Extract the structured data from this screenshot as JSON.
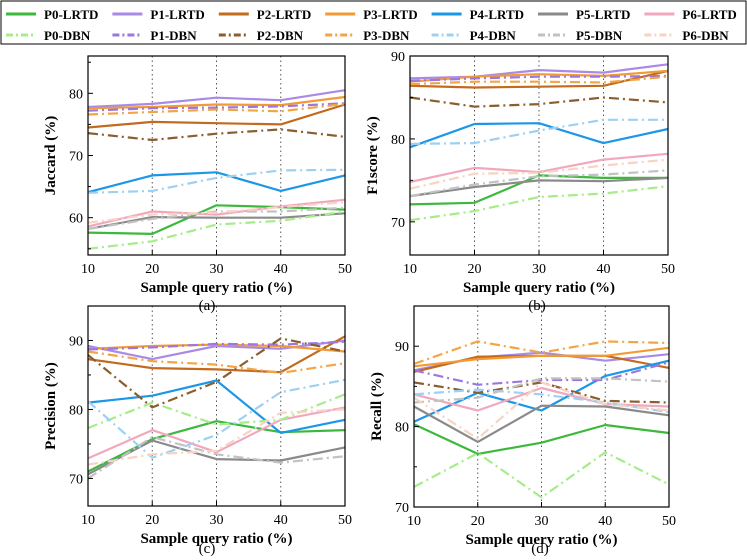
{
  "legend": {
    "entries": [
      {
        "label": "P0-LRTD",
        "color": "#3cb93c",
        "style": "solid"
      },
      {
        "label": "P1-LRTD",
        "color": "#a98ae6",
        "style": "solid"
      },
      {
        "label": "P2-LRTD",
        "color": "#c26a1e",
        "style": "solid"
      },
      {
        "label": "P3-LRTD",
        "color": "#f29a33",
        "style": "solid"
      },
      {
        "label": "P4-LRTD",
        "color": "#1c97e8",
        "style": "solid"
      },
      {
        "label": "P5-LRTD",
        "color": "#8a8a8a",
        "style": "solid"
      },
      {
        "label": "P6-LRTD",
        "color": "#f2a8bc",
        "style": "solid"
      },
      {
        "label": "P0-DBN",
        "color": "#a6ec8a",
        "style": "dashdot"
      },
      {
        "label": "P1-DBN",
        "color": "#9a78e0",
        "style": "dashdot"
      },
      {
        "label": "P2-DBN",
        "color": "#8a5e2e",
        "style": "dashdot"
      },
      {
        "label": "P3-DBN",
        "color": "#f5a445",
        "style": "dashdot"
      },
      {
        "label": "P4-DBN",
        "color": "#9ed0f2",
        "style": "dashdot"
      },
      {
        "label": "P5-DBN",
        "color": "#c2c2c2",
        "style": "dashdot"
      },
      {
        "label": "P6-DBN",
        "color": "#f8d3c4",
        "style": "dashdot"
      }
    ]
  },
  "chart_data": [
    {
      "type": "line",
      "panel_label": "(a)",
      "ylabel": "Jaccard (%)",
      "xlabel": "Sample query ratio (%)",
      "x": [
        10,
        20,
        30,
        40,
        50
      ],
      "xlim": [
        10,
        50
      ],
      "ylim": [
        54,
        86
      ],
      "yticks": [
        60,
        70,
        80
      ],
      "series": [
        {
          "name": "P0-LRTD",
          "values": [
            57.6,
            57.4,
            62.0,
            61.7,
            61.3
          ]
        },
        {
          "name": "P1-LRTD",
          "values": [
            77.8,
            78.3,
            79.3,
            78.9,
            80.5
          ]
        },
        {
          "name": "P2-LRTD",
          "values": [
            74.5,
            75.4,
            75.2,
            75.0,
            78.2
          ]
        },
        {
          "name": "P3-LRTD",
          "values": [
            77.6,
            77.8,
            78.2,
            78.1,
            79.4
          ]
        },
        {
          "name": "P4-LRTD",
          "values": [
            64.1,
            66.8,
            67.3,
            64.3,
            66.8
          ]
        },
        {
          "name": "P5-LRTD",
          "values": [
            58.2,
            60.1,
            60.0,
            60.0,
            60.7
          ]
        },
        {
          "name": "P6-LRTD",
          "values": [
            58.6,
            61.0,
            60.5,
            61.8,
            62.9
          ]
        },
        {
          "name": "P0-DBN",
          "values": [
            55.0,
            56.2,
            58.9,
            59.5,
            61.0
          ]
        },
        {
          "name": "P1-DBN",
          "values": [
            77.2,
            77.6,
            77.7,
            77.9,
            78.4
          ]
        },
        {
          "name": "P2-DBN",
          "values": [
            73.6,
            72.5,
            73.5,
            74.2,
            73.0
          ]
        },
        {
          "name": "P3-DBN",
          "values": [
            76.6,
            77.0,
            77.4,
            77.1,
            78.3
          ]
        },
        {
          "name": "P4-DBN",
          "values": [
            64.0,
            64.3,
            66.4,
            67.6,
            67.7
          ]
        },
        {
          "name": "P5-DBN",
          "values": [
            58.2,
            59.8,
            61.0,
            61.0,
            61.6
          ]
        },
        {
          "name": "P6-DBN",
          "values": [
            59.2,
            60.5,
            60.8,
            61.7,
            62.5
          ]
        }
      ]
    },
    {
      "type": "line",
      "panel_label": "(b)",
      "ylabel": "F1score (%)",
      "xlabel": "Sample query ratio (%)",
      "x": [
        10,
        20,
        30,
        40,
        50
      ],
      "xlim": [
        10,
        50
      ],
      "ylim": [
        66,
        90
      ],
      "yticks": [
        70,
        80,
        90
      ],
      "series": [
        {
          "name": "P0-LRTD",
          "values": [
            72.1,
            72.3,
            75.6,
            75.3,
            75.3
          ]
        },
        {
          "name": "P1-LRTD",
          "values": [
            87.3,
            87.5,
            88.3,
            88.0,
            89.0
          ]
        },
        {
          "name": "P2-LRTD",
          "values": [
            86.4,
            86.2,
            86.3,
            86.4,
            88.2
          ]
        },
        {
          "name": "P3-LRTD",
          "values": [
            86.9,
            87.5,
            87.8,
            87.6,
            88.2
          ]
        },
        {
          "name": "P4-LRTD",
          "values": [
            79.0,
            81.8,
            81.9,
            79.5,
            81.2
          ]
        },
        {
          "name": "P5-LRTD",
          "values": [
            73.1,
            74.2,
            75.0,
            74.9,
            75.3
          ]
        },
        {
          "name": "P6-LRTD",
          "values": [
            74.8,
            76.5,
            76.0,
            77.5,
            78.2
          ]
        },
        {
          "name": "P0-DBN",
          "values": [
            70.2,
            71.3,
            73.0,
            73.4,
            74.3
          ]
        },
        {
          "name": "P1-DBN",
          "values": [
            87.0,
            87.3,
            87.5,
            87.5,
            87.6
          ]
        },
        {
          "name": "P2-DBN",
          "values": [
            85.0,
            83.9,
            84.2,
            85.0,
            84.4
          ]
        },
        {
          "name": "P3-DBN",
          "values": [
            86.6,
            86.9,
            86.9,
            86.8,
            87.5
          ]
        },
        {
          "name": "P4-DBN",
          "values": [
            79.4,
            79.5,
            81.0,
            82.3,
            82.3
          ]
        },
        {
          "name": "P5-DBN",
          "values": [
            73.1,
            74.5,
            75.5,
            75.7,
            76.2
          ]
        },
        {
          "name": "P6-DBN",
          "values": [
            74.0,
            75.8,
            75.9,
            76.8,
            77.5
          ]
        }
      ]
    },
    {
      "type": "line",
      "panel_label": "(c)",
      "ylabel": "Precision (%)",
      "xlabel": "Sample query ratio (%)",
      "x": [
        10,
        20,
        30,
        40,
        50
      ],
      "xlim": [
        10,
        50
      ],
      "ylim": [
        66,
        95
      ],
      "yticks": [
        70,
        80,
        90
      ],
      "series": [
        {
          "name": "P0-LRTD",
          "values": [
            71.0,
            75.7,
            78.3,
            76.7,
            77.0
          ]
        },
        {
          "name": "P1-LRTD",
          "values": [
            89.2,
            87.3,
            89.2,
            88.8,
            90.0
          ]
        },
        {
          "name": "P2-LRTD",
          "values": [
            87.3,
            86.0,
            85.8,
            85.4,
            90.6
          ]
        },
        {
          "name": "P3-LRTD",
          "values": [
            88.8,
            89.2,
            89.4,
            89.2,
            88.4
          ]
        },
        {
          "name": "P4-LRTD",
          "values": [
            81.0,
            82.0,
            84.2,
            76.6,
            78.5
          ]
        },
        {
          "name": "P5-LRTD",
          "values": [
            70.6,
            75.5,
            72.8,
            72.6,
            74.5
          ]
        },
        {
          "name": "P6-LRTD",
          "values": [
            72.9,
            77.0,
            73.8,
            78.5,
            80.3
          ]
        },
        {
          "name": "P0-DBN",
          "values": [
            77.3,
            81.0,
            77.8,
            78.5,
            82.2
          ]
        },
        {
          "name": "P1-DBN",
          "values": [
            88.7,
            89.0,
            89.5,
            89.4,
            89.8
          ]
        },
        {
          "name": "P2-DBN",
          "values": [
            87.9,
            80.3,
            84.0,
            90.3,
            88.4
          ]
        },
        {
          "name": "P3-DBN",
          "values": [
            88.4,
            87.0,
            86.5,
            85.3,
            86.7
          ]
        },
        {
          "name": "P4-DBN",
          "values": [
            81.2,
            73.0,
            76.3,
            82.5,
            84.3
          ]
        },
        {
          "name": "P5-DBN",
          "values": [
            70.0,
            76.0,
            73.5,
            72.3,
            73.2
          ]
        },
        {
          "name": "P6-DBN",
          "values": [
            72.0,
            73.5,
            74.0,
            79.5,
            80.0
          ]
        }
      ]
    },
    {
      "type": "line",
      "panel_label": "(d)",
      "ylabel": "Recall (%)",
      "xlabel": "Sample query ratio (%)",
      "x": [
        10,
        20,
        30,
        40,
        50
      ],
      "xlim": [
        10,
        50
      ],
      "ylim": [
        70,
        95
      ],
      "yticks": [
        70,
        80,
        90
      ],
      "series": [
        {
          "name": "P0-LRTD",
          "values": [
            80.3,
            76.6,
            78.0,
            80.2,
            79.2
          ]
        },
        {
          "name": "P1-LRTD",
          "values": [
            87.0,
            88.6,
            89.2,
            88.2,
            89.0
          ]
        },
        {
          "name": "P2-LRTD",
          "values": [
            86.8,
            88.7,
            88.8,
            88.8,
            87.3
          ]
        },
        {
          "name": "P3-LRTD",
          "values": [
            87.5,
            88.4,
            88.8,
            88.8,
            89.8
          ]
        },
        {
          "name": "P4-LRTD",
          "values": [
            80.6,
            84.2,
            82.0,
            86.3,
            88.2
          ]
        },
        {
          "name": "P5-LRTD",
          "values": [
            82.5,
            78.1,
            82.6,
            82.5,
            81.4
          ]
        },
        {
          "name": "P6-LRTD",
          "values": [
            84.0,
            82.0,
            84.8,
            82.8,
            82.5
          ]
        },
        {
          "name": "P0-DBN",
          "values": [
            72.5,
            76.7,
            71.2,
            76.8,
            72.8
          ]
        },
        {
          "name": "P1-DBN",
          "values": [
            87.0,
            85.2,
            85.8,
            85.8,
            88.0
          ]
        },
        {
          "name": "P2-DBN",
          "values": [
            85.5,
            84.2,
            85.5,
            83.2,
            83.0
          ]
        },
        {
          "name": "P3-DBN",
          "values": [
            87.8,
            90.6,
            89.2,
            90.6,
            90.4
          ]
        },
        {
          "name": "P4-DBN",
          "values": [
            84.0,
            84.6,
            84.0,
            83.0,
            81.8
          ]
        },
        {
          "name": "P5-DBN",
          "values": [
            83.0,
            83.6,
            86.0,
            86.0,
            85.6
          ]
        },
        {
          "name": "P6-DBN",
          "values": [
            83.6,
            78.5,
            85.5,
            82.8,
            82.0
          ]
        }
      ]
    }
  ]
}
